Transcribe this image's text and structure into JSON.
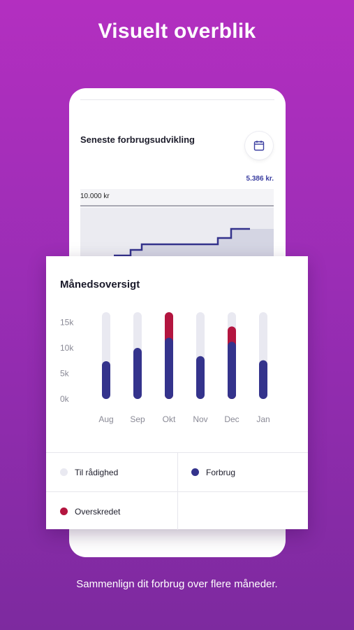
{
  "header": {
    "title": "Visuelt overblik"
  },
  "trend": {
    "title": "Seneste forbrugsudvikling",
    "value": "5.386 kr.",
    "axis_label": "10.000 kr",
    "calendar_icon": "calendar-icon"
  },
  "monthly": {
    "title": "Månedsoversigt",
    "legend": [
      {
        "label": "Til rådighed",
        "color": "#e9e9f1"
      },
      {
        "label": "Forbrug",
        "color": "#34338c"
      },
      {
        "label": "Overskredet",
        "color": "#b3153f"
      }
    ]
  },
  "chart_data": {
    "type": "bar",
    "categories": [
      "Aug",
      "Sep",
      "Okt",
      "Nov",
      "Dec",
      "Jan"
    ],
    "yticks": [
      "15k",
      "10k",
      "5k",
      "0k"
    ],
    "ylim": [
      0,
      17000
    ],
    "series": [
      {
        "name": "Til rådighed",
        "values": [
          17000,
          17000,
          17000,
          17000,
          17000,
          17000
        ],
        "color": "#e9e9f1"
      },
      {
        "name": "Forbrug",
        "values": [
          7400,
          10000,
          12000,
          8400,
          11200,
          7600
        ],
        "color": "#34338c"
      },
      {
        "name": "Overskredet",
        "values": [
          0,
          0,
          5000,
          0,
          3000,
          0
        ],
        "color": "#b3153f"
      }
    ]
  },
  "footer": {
    "text": "Sammenlign dit forbrug over flere måneder."
  }
}
